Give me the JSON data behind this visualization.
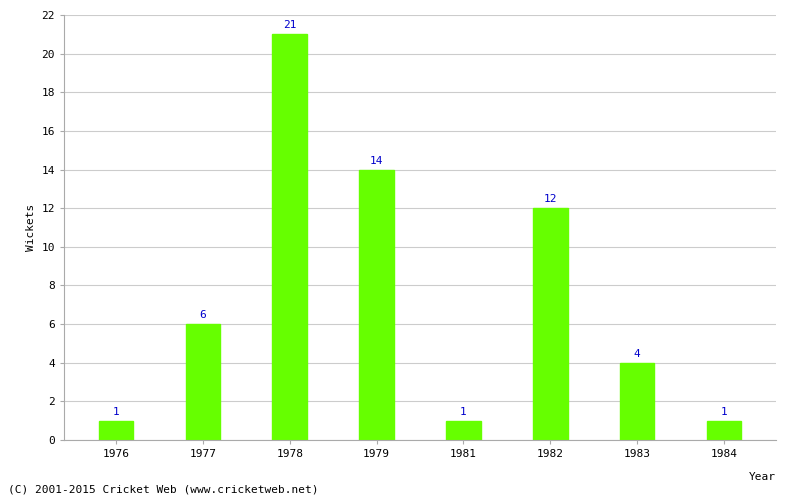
{
  "years": [
    "1976",
    "1977",
    "1978",
    "1979",
    "1981",
    "1982",
    "1983",
    "1984"
  ],
  "wickets": [
    1,
    6,
    21,
    14,
    1,
    12,
    4,
    1
  ],
  "bar_color": "#66ff00",
  "bar_edge_color": "#66ff00",
  "label_color": "#0000cc",
  "xlabel": "Year",
  "ylabel": "Wickets",
  "ylim": [
    0,
    22
  ],
  "yticks": [
    0,
    2,
    4,
    6,
    8,
    10,
    12,
    14,
    16,
    18,
    20,
    22
  ],
  "background_color": "#ffffff",
  "grid_color": "#cccccc",
  "label_fontsize": 8,
  "axis_fontsize": 8,
  "tick_fontsize": 8,
  "bar_width": 0.4,
  "footer_text": "(C) 2001-2015 Cricket Web (www.cricketweb.net)",
  "footer_fontsize": 8
}
